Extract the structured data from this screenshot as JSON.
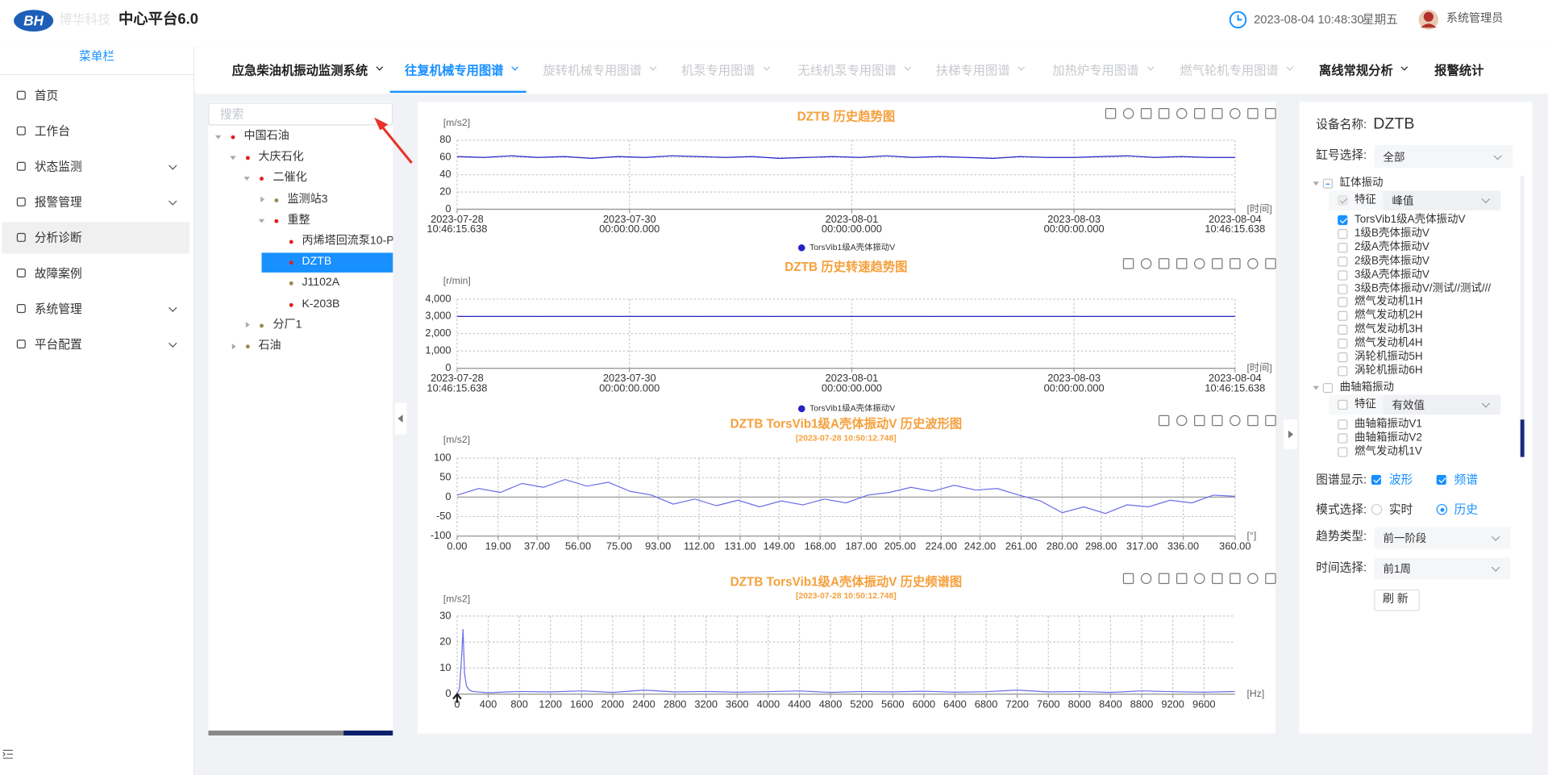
{
  "header": {
    "logo": "BH",
    "brand_faded": "博华科技",
    "title": "中心平台6.0",
    "datetime": "2023-08-04 10:48:30",
    "weekday": "星期五",
    "user": "系统管理员"
  },
  "sidebar": {
    "heading": "菜单栏",
    "items": [
      {
        "label": "首页"
      },
      {
        "label": "工作台"
      },
      {
        "label": "状态监测",
        "children": true
      },
      {
        "label": "报警管理",
        "children": true
      },
      {
        "label": "分析诊断",
        "selected": true
      },
      {
        "label": "故障案例"
      },
      {
        "label": "系统管理",
        "children": true
      },
      {
        "label": "平台配置",
        "children": true
      }
    ]
  },
  "tabs": [
    {
      "label": "应急柴油机振动监测系统",
      "dropdown": true
    },
    {
      "label": "往复机械专用图谱",
      "dropdown": true,
      "state": "active"
    },
    {
      "label": "旋转机械专用图谱",
      "dropdown": true,
      "state": "disabled"
    },
    {
      "label": "机泵专用图谱",
      "dropdown": true,
      "state": "disabled"
    },
    {
      "label": "无线机泵专用图谱",
      "dropdown": true,
      "state": "disabled"
    },
    {
      "label": "扶梯专用图谱",
      "dropdown": true,
      "state": "disabled"
    },
    {
      "label": "加热炉专用图谱",
      "dropdown": true,
      "state": "disabled"
    },
    {
      "label": "燃气轮机专用图谱",
      "dropdown": true,
      "state": "disabled"
    },
    {
      "label": "离线常规分析",
      "dropdown": true
    },
    {
      "label": "报警统计"
    }
  ],
  "tree": {
    "search_placeholder": "搜索",
    "nodes": [
      {
        "label": "中国石油",
        "depth": 0,
        "dot": "red",
        "expanded": true
      },
      {
        "label": "大庆石化",
        "depth": 1,
        "dot": "red",
        "expanded": true
      },
      {
        "label": "二催化",
        "depth": 2,
        "dot": "red",
        "expanded": true
      },
      {
        "label": "监测站3",
        "depth": 3,
        "dot": "olive",
        "expanded": false
      },
      {
        "label": "重整",
        "depth": 3,
        "dot": "red",
        "expanded": true
      },
      {
        "label": "丙烯塔回流泵10-P-",
        "depth": 4,
        "dot": "red"
      },
      {
        "label": "DZTB",
        "depth": 4,
        "dot": "red",
        "selected": true
      },
      {
        "label": "J1102A",
        "depth": 4,
        "dot": "olive"
      },
      {
        "label": "K-203B",
        "depth": 4,
        "dot": "red"
      },
      {
        "label": "分厂1",
        "depth": 2,
        "dot": "olive",
        "expanded": false
      },
      {
        "label": "石油",
        "depth": 1,
        "dot": "olive",
        "expanded": false
      }
    ]
  },
  "charts": [
    {
      "type": "line",
      "title": "DZTB 历史趋势图",
      "y_unit": "[m/s2]",
      "x_unit": "[时间]",
      "xlim": [
        "2023-07-28 10:46:15.638",
        "2023-08-04 10:46:15.638"
      ],
      "xticks": [
        "2023-07-28 10:46:15.638",
        "2023-07-30 00:00:00.000",
        "2023-08-01 00:00:00.000",
        "2023-08-03 00:00:00.000",
        "2023-08-04 10:46:15.638"
      ],
      "ylim": [
        0,
        80
      ],
      "yticks": [
        0,
        20,
        40,
        60,
        80
      ],
      "grid": true,
      "series": [
        {
          "name": "TorsVib1级A壳体振动V",
          "color": "#2323c8",
          "values": [
            61,
            60,
            62,
            60,
            61,
            59,
            61,
            60,
            62,
            61,
            60,
            61,
            59,
            60,
            61,
            60,
            62,
            60,
            61,
            60,
            59,
            61,
            60,
            60,
            61,
            62,
            60,
            61,
            60,
            60
          ]
        }
      ]
    },
    {
      "type": "line",
      "title": "DZTB 历史转速趋势图",
      "y_unit": "[r/min]",
      "x_unit": "[时间]",
      "xlim": [
        "2023-07-28 10:46:15.638",
        "2023-08-04 10:46:15.638"
      ],
      "xticks": [
        "2023-07-28 10:46:15.638",
        "2023-07-30 00:00:00.000",
        "2023-08-01 00:00:00.000",
        "2023-08-03 00:00:00.000",
        "2023-08-04 10:46:15.638"
      ],
      "ylim": [
        0,
        4000
      ],
      "yticks": [
        0,
        {
          "value": 1000,
          "label": "1,000"
        },
        {
          "value": 2000,
          "label": "2,000"
        },
        {
          "value": 3000,
          "label": "3,000"
        },
        {
          "value": 4000,
          "label": "4,000"
        }
      ],
      "grid": true,
      "series": [
        {
          "name": "TorsVib1级A壳体振动V",
          "color": "#2323c8",
          "values": [
            3000,
            3000,
            3000,
            3000,
            3000,
            3000,
            3000,
            3000,
            3000,
            3000,
            3000,
            3000
          ]
        }
      ]
    },
    {
      "type": "line",
      "title": "DZTB TorsVib1级A壳体振动V 历史波形图",
      "subtitle": "[2023-07-28 10:50:12.748]",
      "y_unit": "[m/s2]",
      "x_unit": "[°]",
      "xlim": [
        0,
        360
      ],
      "xticks": [
        {
          "value": 0,
          "label": "0.00"
        },
        {
          "value": 19,
          "label": "19.00"
        },
        {
          "value": 37,
          "label": "37.00"
        },
        {
          "value": 56,
          "label": "56.00"
        },
        {
          "value": 75,
          "label": "75.00"
        },
        {
          "value": 93,
          "label": "93.00"
        },
        {
          "value": 112,
          "label": "112.00"
        },
        {
          "value": 131,
          "label": "131.00"
        },
        {
          "value": 149,
          "label": "149.00"
        },
        {
          "value": 168,
          "label": "168.00"
        },
        {
          "value": 187,
          "label": "187.00"
        },
        {
          "value": 205,
          "label": "205.00"
        },
        {
          "value": 224,
          "label": "224.00"
        },
        {
          "value": 242,
          "label": "242.00"
        },
        {
          "value": 261,
          "label": "261.00"
        },
        {
          "value": 280,
          "label": "280.00"
        },
        {
          "value": 298,
          "label": "298.00"
        },
        {
          "value": 317,
          "label": "317.00"
        },
        {
          "value": 336,
          "label": "336.00"
        },
        {
          "value": 360,
          "label": "360.00"
        }
      ],
      "ylim": [
        -100,
        100
      ],
      "yticks": [
        100,
        50,
        0,
        -50,
        -100
      ],
      "grid": true,
      "x": [
        0,
        10,
        20,
        30,
        40,
        50,
        60,
        70,
        80,
        90,
        100,
        110,
        120,
        130,
        140,
        150,
        160,
        170,
        180,
        190,
        200,
        210,
        220,
        230,
        240,
        250,
        260,
        270,
        280,
        290,
        300,
        310,
        320,
        330,
        340,
        350,
        360
      ],
      "series": [
        {
          "color": "#6b6be6",
          "values": [
            5,
            22,
            12,
            35,
            25,
            45,
            28,
            38,
            15,
            5,
            -18,
            -5,
            -22,
            -8,
            -25,
            -10,
            -20,
            -5,
            -15,
            5,
            12,
            25,
            15,
            30,
            18,
            22,
            5,
            -10,
            -40,
            -25,
            -42,
            -20,
            -25,
            -8,
            -15,
            5,
            2
          ]
        }
      ]
    },
    {
      "type": "line",
      "title": "DZTB TorsVib1级A壳体振动V 历史频谱图",
      "subtitle": "[2023-07-28 10:50:12.748]",
      "y_unit": "[m/s2]",
      "x_unit": "[Hz]",
      "xlim": [
        0,
        10000
      ],
      "xticks": [
        0,
        400,
        800,
        1200,
        1600,
        2000,
        2400,
        2800,
        3200,
        3600,
        4000,
        4400,
        4800,
        5200,
        5600,
        6000,
        6400,
        6800,
        7200,
        7600,
        8000,
        8400,
        8800,
        9200,
        9600
      ],
      "ylim": [
        0,
        30
      ],
      "yticks": [
        0,
        10,
        20,
        30
      ],
      "grid": true,
      "x": [
        0,
        30,
        60,
        76,
        95,
        120,
        160,
        200,
        400,
        800,
        1200,
        1600,
        2000,
        2400,
        2800,
        3200,
        3600,
        4000,
        4400,
        4800,
        5200,
        5600,
        6000,
        6400,
        6800,
        7200,
        7600,
        8000,
        8400,
        8800,
        9200,
        9600,
        10000
      ],
      "series": [
        {
          "color": "#6b6be6",
          "values": [
            0,
            2,
            15,
            25,
            8,
            3,
            1.5,
            1,
            0.5,
            1,
            0.8,
            1.2,
            0.6,
            1.5,
            0.8,
            1,
            0.7,
            0.9,
            1.2,
            0.6,
            1,
            0.8,
            1.1,
            0.7,
            0.9,
            1.5,
            0.8,
            1,
            0.6,
            1.2,
            0.9,
            0.7,
            1
          ]
        }
      ]
    }
  ],
  "right_panel": {
    "device_label": "设备名称:",
    "device": "DZTB",
    "cylinder_label": "缸号选择:",
    "cylinder_value": "全部",
    "groups": [
      {
        "label": "缸体振动",
        "checked": "partial",
        "feature_label": "特征",
        "feature_value": "峰值",
        "feature_checked": true,
        "items": [
          {
            "label": "TorsVib1级A壳体振动V",
            "checked": true
          },
          {
            "label": "1级B壳体振动V"
          },
          {
            "label": "2级A壳体振动V"
          },
          {
            "label": "2级B壳体振动V"
          },
          {
            "label": "3级A壳体振动V"
          },
          {
            "label": "3级B壳体振动V/测试//测试///"
          },
          {
            "label": "燃气发动机1H"
          },
          {
            "label": "燃气发动机2H"
          },
          {
            "label": "燃气发动机3H"
          },
          {
            "label": "燃气发动机4H"
          },
          {
            "label": "涡轮机振动5H"
          },
          {
            "label": "涡轮机振动6H"
          }
        ]
      },
      {
        "label": "曲轴箱振动",
        "checked": false,
        "feature_label": "特征",
        "feature_value": "有效值",
        "feature_checked": false,
        "items": [
          {
            "label": "曲轴箱振动V1"
          },
          {
            "label": "曲轴箱振动V2"
          },
          {
            "label": "燃气发动机1V"
          }
        ]
      }
    ],
    "display_label": "图谱显示:",
    "display_options": [
      {
        "label": "波形",
        "checked": true
      },
      {
        "label": "频谱",
        "checked": true
      }
    ],
    "mode_label": "模式选择:",
    "mode_options": [
      {
        "label": "实时",
        "selected": false
      },
      {
        "label": "历史",
        "selected": true
      }
    ],
    "trend_label": "趋势类型:",
    "trend_value": "前一阶段",
    "time_label": "时间选择:",
    "time_value": "前1周",
    "refresh": "刷新"
  }
}
